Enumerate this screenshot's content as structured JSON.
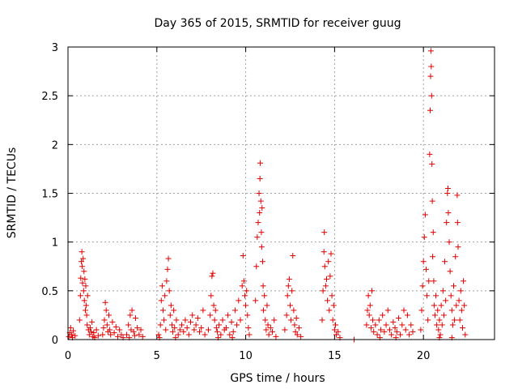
{
  "chart_data": {
    "type": "scatter",
    "title": "Day 365 of 2015, SRMTID for receiver guug",
    "xlabel": "GPS time / hours",
    "ylabel": "SRMTID / TECUs",
    "xlim": [
      0,
      24
    ],
    "ylim": [
      0,
      3
    ],
    "xticks": [
      0,
      5,
      10,
      15,
      20
    ],
    "yticks": [
      0,
      0.5,
      1,
      1.5,
      2,
      2.5,
      3
    ],
    "ytick_labels": [
      "0",
      "0.5",
      "1",
      "1.5",
      "2",
      "2.5",
      "3"
    ],
    "grid": true,
    "marker": "+",
    "color": "#e00000",
    "series": [
      {
        "name": "SRMTID",
        "points": [
          [
            0.05,
            0.03
          ],
          [
            0.1,
            0.07
          ],
          [
            0.15,
            0.12
          ],
          [
            0.2,
            0.05
          ],
          [
            0.25,
            0.02
          ],
          [
            0.3,
            0.09
          ],
          [
            0.4,
            0.04
          ],
          [
            0.65,
            0.2
          ],
          [
            0.7,
            0.45
          ],
          [
            0.72,
            0.63
          ],
          [
            0.75,
            0.8
          ],
          [
            0.78,
            0.9
          ],
          [
            0.8,
            0.75
          ],
          [
            0.82,
            0.58
          ],
          [
            0.85,
            0.83
          ],
          [
            0.88,
            0.5
          ],
          [
            0.9,
            0.7
          ],
          [
            0.92,
            0.4
          ],
          [
            0.95,
            0.62
          ],
          [
            0.98,
            0.3
          ],
          [
            1.0,
            0.55
          ],
          [
            1.02,
            0.35
          ],
          [
            1.05,
            0.25
          ],
          [
            1.08,
            0.15
          ],
          [
            1.1,
            0.45
          ],
          [
            1.15,
            0.1
          ],
          [
            1.2,
            0.05
          ],
          [
            1.25,
            0.12
          ],
          [
            1.3,
            0.08
          ],
          [
            1.35,
            0.18
          ],
          [
            1.4,
            0.03
          ],
          [
            1.45,
            0.07
          ],
          [
            1.5,
            0.02
          ],
          [
            1.6,
            0.1
          ],
          [
            1.7,
            0.04
          ],
          [
            1.95,
            0.05
          ],
          [
            2.0,
            0.12
          ],
          [
            2.05,
            0.2
          ],
          [
            2.1,
            0.38
          ],
          [
            2.15,
            0.3
          ],
          [
            2.2,
            0.15
          ],
          [
            2.25,
            0.08
          ],
          [
            2.3,
            0.25
          ],
          [
            2.35,
            0.1
          ],
          [
            2.4,
            0.05
          ],
          [
            2.5,
            0.18
          ],
          [
            2.6,
            0.07
          ],
          [
            2.7,
            0.13
          ],
          [
            2.8,
            0.03
          ],
          [
            2.9,
            0.1
          ],
          [
            3.0,
            0.05
          ],
          [
            3.1,
            0.02
          ],
          [
            3.3,
            0.05
          ],
          [
            3.4,
            0.15
          ],
          [
            3.5,
            0.25
          ],
          [
            3.55,
            0.1
          ],
          [
            3.6,
            0.3
          ],
          [
            3.7,
            0.08
          ],
          [
            3.8,
            0.22
          ],
          [
            3.9,
            0.12
          ],
          [
            4.0,
            0.05
          ],
          [
            4.1,
            0.1
          ],
          [
            4.2,
            0.03
          ],
          [
            3.45,
            0.02
          ],
          [
            3.75,
            0.04
          ],
          [
            5.1,
            0.05
          ],
          [
            5.2,
            0.15
          ],
          [
            5.25,
            0.4
          ],
          [
            5.3,
            0.55
          ],
          [
            5.35,
            0.3
          ],
          [
            5.4,
            0.2
          ],
          [
            5.45,
            0.45
          ],
          [
            5.5,
            0.1
          ],
          [
            5.55,
            0.6
          ],
          [
            5.6,
            0.72
          ],
          [
            5.65,
            0.83
          ],
          [
            5.7,
            0.5
          ],
          [
            5.75,
            0.25
          ],
          [
            5.8,
            0.35
          ],
          [
            5.85,
            0.15
          ],
          [
            5.9,
            0.08
          ],
          [
            5.95,
            0.3
          ],
          [
            6.0,
            0.12
          ],
          [
            6.1,
            0.2
          ],
          [
            6.2,
            0.05
          ],
          [
            6.3,
            0.1
          ],
          [
            6.4,
            0.15
          ],
          [
            6.5,
            0.08
          ],
          [
            6.6,
            0.2
          ],
          [
            6.7,
            0.12
          ],
          [
            6.8,
            0.05
          ],
          [
            6.9,
            0.18
          ],
          [
            7.0,
            0.25
          ],
          [
            7.1,
            0.1
          ],
          [
            7.2,
            0.15
          ],
          [
            7.3,
            0.22
          ],
          [
            7.4,
            0.08
          ],
          [
            7.5,
            0.12
          ],
          [
            7.6,
            0.3
          ],
          [
            7.7,
            0.05
          ],
          [
            5.15,
            0.02
          ],
          [
            6.05,
            0.02
          ],
          [
            7.9,
            0.1
          ],
          [
            8.0,
            0.25
          ],
          [
            8.05,
            0.45
          ],
          [
            8.1,
            0.65
          ],
          [
            8.15,
            0.68
          ],
          [
            8.2,
            0.35
          ],
          [
            8.25,
            0.2
          ],
          [
            8.3,
            0.3
          ],
          [
            8.35,
            0.12
          ],
          [
            8.4,
            0.08
          ],
          [
            8.5,
            0.15
          ],
          [
            8.6,
            0.05
          ],
          [
            8.7,
            0.2
          ],
          [
            8.8,
            0.1
          ],
          [
            8.9,
            0.12
          ],
          [
            9.0,
            0.25
          ],
          [
            9.1,
            0.05
          ],
          [
            9.2,
            0.18
          ],
          [
            9.3,
            0.08
          ],
          [
            9.4,
            0.3
          ],
          [
            9.5,
            0.15
          ],
          [
            9.6,
            0.4
          ],
          [
            9.7,
            0.2
          ],
          [
            9.8,
            0.55
          ],
          [
            9.85,
            0.86
          ],
          [
            9.9,
            0.6
          ],
          [
            9.95,
            0.45
          ],
          [
            10.0,
            0.35
          ],
          [
            10.05,
            0.5
          ],
          [
            10.1,
            0.25
          ],
          [
            10.15,
            0.12
          ],
          [
            10.2,
            0.05
          ],
          [
            8.45,
            0.02
          ],
          [
            9.25,
            0.02
          ],
          [
            10.55,
            0.4
          ],
          [
            10.6,
            0.75
          ],
          [
            10.65,
            1.05
          ],
          [
            10.7,
            1.2
          ],
          [
            10.75,
            1.5
          ],
          [
            10.78,
            1.3
          ],
          [
            10.8,
            1.65
          ],
          [
            10.82,
            1.81
          ],
          [
            10.85,
            1.42
          ],
          [
            10.88,
            1.1
          ],
          [
            10.9,
            0.95
          ],
          [
            10.92,
            1.35
          ],
          [
            10.95,
            0.8
          ],
          [
            10.98,
            0.55
          ],
          [
            11.0,
            0.3
          ],
          [
            11.05,
            0.45
          ],
          [
            11.1,
            0.2
          ],
          [
            11.15,
            0.1
          ],
          [
            11.2,
            0.35
          ],
          [
            11.25,
            0.15
          ],
          [
            11.3,
            0.05
          ],
          [
            11.4,
            0.12
          ],
          [
            11.5,
            0.08
          ],
          [
            11.6,
            0.2
          ],
          [
            11.7,
            0.03
          ],
          [
            12.2,
            0.1
          ],
          [
            12.3,
            0.25
          ],
          [
            12.35,
            0.45
          ],
          [
            12.4,
            0.55
          ],
          [
            12.45,
            0.62
          ],
          [
            12.5,
            0.35
          ],
          [
            12.55,
            0.2
          ],
          [
            12.6,
            0.5
          ],
          [
            12.65,
            0.86
          ],
          [
            12.7,
            0.3
          ],
          [
            12.75,
            0.15
          ],
          [
            12.8,
            0.08
          ],
          [
            12.85,
            0.22
          ],
          [
            12.9,
            0.05
          ],
          [
            13.0,
            0.12
          ],
          [
            13.1,
            0.03
          ],
          [
            14.3,
            0.2
          ],
          [
            14.35,
            0.5
          ],
          [
            14.4,
            0.9
          ],
          [
            14.42,
            1.1
          ],
          [
            14.45,
            0.75
          ],
          [
            14.5,
            0.55
          ],
          [
            14.55,
            0.62
          ],
          [
            14.6,
            0.4
          ],
          [
            14.65,
            0.8
          ],
          [
            14.7,
            0.3
          ],
          [
            14.75,
            0.65
          ],
          [
            14.8,
            0.88
          ],
          [
            14.85,
            0.45
          ],
          [
            14.9,
            0.2
          ],
          [
            14.95,
            0.35
          ],
          [
            15.0,
            0.1
          ],
          [
            15.05,
            0.15
          ],
          [
            15.1,
            0.05
          ],
          [
            15.2,
            0.08
          ],
          [
            15.3,
            0.02
          ],
          [
            16.1,
            0.0
          ],
          [
            16.8,
            0.15
          ],
          [
            16.85,
            0.3
          ],
          [
            16.9,
            0.45
          ],
          [
            16.95,
            0.25
          ],
          [
            17.0,
            0.35
          ],
          [
            17.05,
            0.12
          ],
          [
            17.1,
            0.5
          ],
          [
            17.15,
            0.2
          ],
          [
            17.2,
            0.08
          ],
          [
            17.3,
            0.15
          ],
          [
            17.4,
            0.05
          ],
          [
            17.5,
            0.2
          ],
          [
            17.6,
            0.1
          ],
          [
            17.7,
            0.25
          ],
          [
            17.8,
            0.08
          ],
          [
            17.9,
            0.15
          ],
          [
            18.0,
            0.3
          ],
          [
            18.1,
            0.1
          ],
          [
            18.2,
            0.05
          ],
          [
            18.3,
            0.18
          ],
          [
            18.4,
            0.12
          ],
          [
            18.5,
            0.08
          ],
          [
            18.6,
            0.22
          ],
          [
            18.7,
            0.05
          ],
          [
            18.8,
            0.15
          ],
          [
            18.9,
            0.3
          ],
          [
            19.0,
            0.1
          ],
          [
            19.1,
            0.25
          ],
          [
            19.2,
            0.05
          ],
          [
            19.3,
            0.15
          ],
          [
            19.4,
            0.08
          ],
          [
            17.55,
            0.02
          ],
          [
            18.45,
            0.02
          ],
          [
            19.85,
            0.1
          ],
          [
            19.9,
            0.3
          ],
          [
            19.95,
            0.55
          ],
          [
            20.0,
            0.8
          ],
          [
            20.05,
            1.05
          ],
          [
            20.1,
            1.28
          ],
          [
            20.15,
            0.72
          ],
          [
            20.2,
            0.45
          ],
          [
            20.25,
            0.2
          ],
          [
            20.3,
            0.6
          ],
          [
            20.35,
            1.9
          ],
          [
            20.38,
            2.35
          ],
          [
            20.4,
            2.7
          ],
          [
            20.42,
            2.96
          ],
          [
            20.44,
            2.8
          ],
          [
            20.46,
            2.5
          ],
          [
            20.48,
            1.8
          ],
          [
            20.5,
            1.42
          ],
          [
            20.52,
            0.85
          ],
          [
            20.55,
            1.1
          ],
          [
            20.58,
            0.6
          ],
          [
            20.6,
            0.35
          ],
          [
            20.65,
            0.25
          ],
          [
            20.7,
            0.45
          ],
          [
            20.75,
            0.15
          ],
          [
            20.8,
            0.3
          ],
          [
            20.85,
            0.1
          ],
          [
            20.9,
            0.2
          ],
          [
            20.95,
            0.05
          ],
          [
            21.0,
            0.35
          ],
          [
            21.05,
            0.15
          ],
          [
            21.1,
            0.5
          ],
          [
            21.15,
            0.25
          ],
          [
            21.2,
            0.8
          ],
          [
            21.25,
            0.4
          ],
          [
            21.3,
            1.2
          ],
          [
            21.35,
            1.5
          ],
          [
            21.38,
            1.55
          ],
          [
            21.4,
            1.3
          ],
          [
            21.45,
            1.0
          ],
          [
            21.5,
            0.7
          ],
          [
            21.55,
            0.45
          ],
          [
            21.6,
            0.3
          ],
          [
            21.65,
            0.15
          ],
          [
            21.7,
            0.55
          ],
          [
            21.75,
            0.2
          ],
          [
            21.8,
            0.85
          ],
          [
            21.85,
            0.35
          ],
          [
            21.9,
            1.48
          ],
          [
            21.92,
            1.2
          ],
          [
            21.95,
            0.95
          ],
          [
            22.0,
            0.4
          ],
          [
            22.05,
            0.2
          ],
          [
            22.1,
            0.5
          ],
          [
            22.15,
            0.3
          ],
          [
            22.2,
            0.12
          ],
          [
            22.25,
            0.6
          ],
          [
            22.3,
            0.35
          ],
          [
            22.35,
            0.05
          ],
          [
            20.9,
            0.02
          ],
          [
            21.6,
            0.02
          ]
        ]
      }
    ]
  }
}
